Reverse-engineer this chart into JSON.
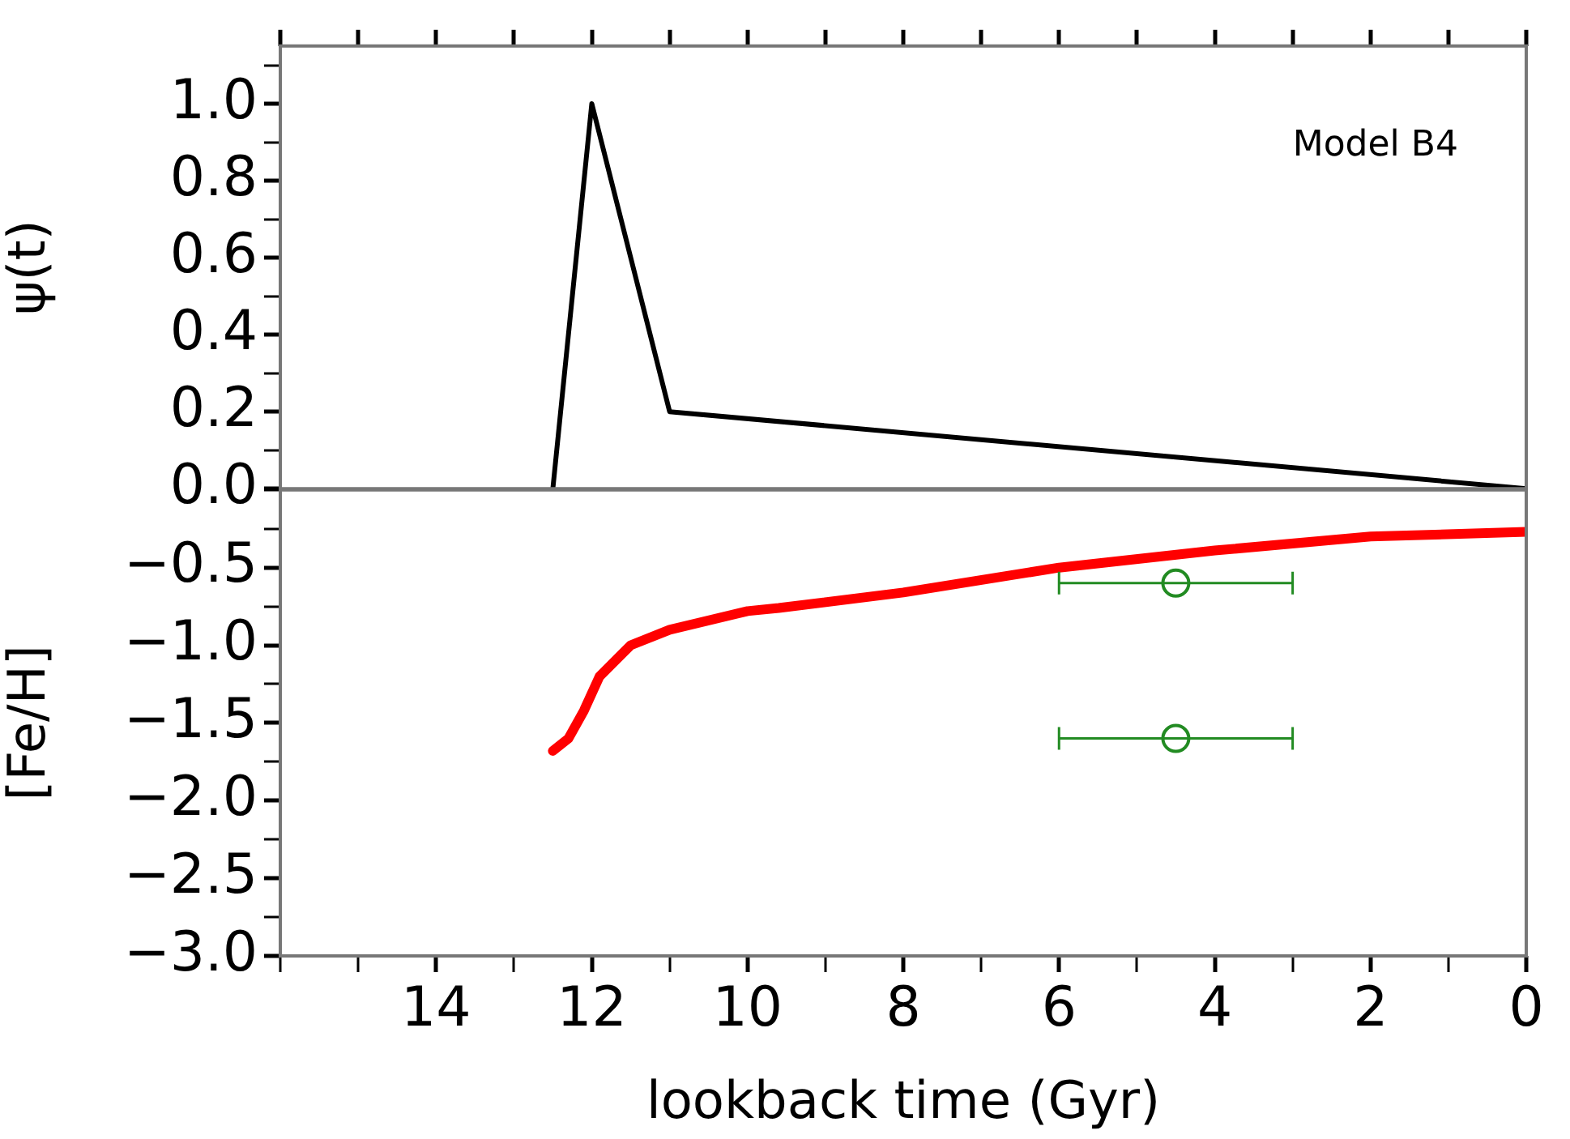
{
  "chart_data": [
    {
      "type": "line",
      "ylabel": "ψ(t)",
      "annotations": [
        "Model B4"
      ],
      "xlim": [
        16,
        0
      ],
      "xticks": [
        16,
        15,
        14,
        13,
        12,
        11,
        10,
        9,
        8,
        7,
        6,
        5,
        4,
        3,
        2,
        1,
        0
      ],
      "ylim": [
        0,
        1.15
      ],
      "yticks": [
        {
          "value": 0,
          "label": "0.0"
        },
        {
          "value": 0.1,
          "label": null
        },
        {
          "value": 0.2,
          "label": "0.2"
        },
        {
          "value": 0.3,
          "label": null
        },
        {
          "value": 0.4,
          "label": "0.4"
        },
        {
          "value": 0.5,
          "label": null
        },
        {
          "value": 0.6,
          "label": "0.6"
        },
        {
          "value": 0.7,
          "label": null
        },
        {
          "value": 0.8,
          "label": "0.8"
        },
        {
          "value": 0.9,
          "label": null
        },
        {
          "value": 1.0,
          "label": "1.0"
        },
        {
          "value": 1.1,
          "label": null
        }
      ],
      "tick_labels": "y",
      "grid": false,
      "legend": false,
      "series": [
        {
          "color": "#000000",
          "x": [
            12.5,
            12,
            11,
            0
          ],
          "values": [
            0,
            1,
            0.2,
            0
          ]
        }
      ]
    },
    {
      "type": "line",
      "xlabel": "lookback time (Gyr)",
      "ylabel": "[Fe/H]",
      "xlim": [
        16,
        0
      ],
      "xticks": [
        {
          "value": 16,
          "label": null
        },
        {
          "value": 15,
          "label": null
        },
        {
          "value": 14,
          "label": "14"
        },
        {
          "value": 13,
          "label": null
        },
        {
          "value": 12,
          "label": "12"
        },
        {
          "value": 11,
          "label": null
        },
        {
          "value": 10,
          "label": "10"
        },
        {
          "value": 9,
          "label": null
        },
        {
          "value": 8,
          "label": "8"
        },
        {
          "value": 7,
          "label": null
        },
        {
          "value": 6,
          "label": "6"
        },
        {
          "value": 5,
          "label": null
        },
        {
          "value": 4,
          "label": "4"
        },
        {
          "value": 3,
          "label": null
        },
        {
          "value": 2,
          "label": "2"
        },
        {
          "value": 1,
          "label": null
        },
        {
          "value": 0,
          "label": "0"
        }
      ],
      "ylim": [
        -3,
        0
      ],
      "yticks": [
        {
          "value": -3,
          "label": "−3.0"
        },
        {
          "value": -2.75,
          "label": null
        },
        {
          "value": -2.5,
          "label": "−2.5"
        },
        {
          "value": -2.25,
          "label": null
        },
        {
          "value": -2,
          "label": "−2.0"
        },
        {
          "value": -1.75,
          "label": null
        },
        {
          "value": -1.5,
          "label": "−1.5"
        },
        {
          "value": -1.25,
          "label": null
        },
        {
          "value": -1,
          "label": "−1.0"
        },
        {
          "value": -0.75,
          "label": null
        },
        {
          "value": -0.5,
          "label": "−0.5"
        },
        {
          "value": -0.25,
          "label": null
        },
        {
          "value": 0,
          "label": null
        }
      ],
      "grid": false,
      "legend": false,
      "series": [
        {
          "color": "#ff0000",
          "x": [
            12.5,
            12.3,
            12.1,
            11.9,
            11.5,
            11,
            10,
            9.6,
            8,
            6,
            4,
            2,
            0
          ],
          "values": [
            -1.68,
            -1.6,
            -1.42,
            -1.2,
            -1.0,
            -0.9,
            -0.78,
            -0.76,
            -0.66,
            -0.5,
            -0.39,
            -0.3,
            -0.27
          ]
        },
        {
          "type": "scatter",
          "marker": "circle",
          "color": "#228b22",
          "x": [
            4.5,
            4.5
          ],
          "values": [
            -0.6,
            -1.6
          ],
          "xerrors": [
            [
              3,
              6
            ],
            [
              3,
              6
            ]
          ]
        }
      ]
    }
  ]
}
